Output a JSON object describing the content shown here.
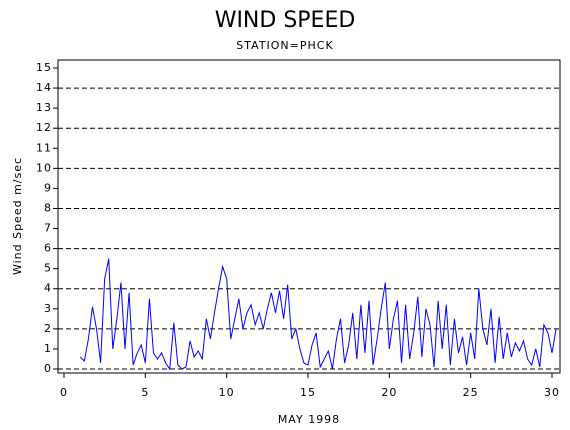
{
  "chart_data": {
    "type": "line",
    "title": "WIND SPEED",
    "subtitle": "STATION=PHCK",
    "xlabel": "MAY 1998",
    "ylabel": "Wind Speed m/sec",
    "xlim": [
      0,
      30
    ],
    "xticks": [
      0,
      5,
      10,
      15,
      20,
      25,
      30
    ],
    "ylim": [
      0,
      15
    ],
    "yticks": [
      0,
      1,
      2,
      3,
      4,
      5,
      6,
      7,
      8,
      9,
      10,
      11,
      12,
      13,
      14,
      15
    ],
    "grid": true,
    "grid_every": 2,
    "x": [
      1,
      1.25,
      1.5,
      1.75,
      2,
      2.25,
      2.5,
      2.75,
      3,
      3.25,
      3.5,
      3.75,
      4,
      4.25,
      4.5,
      4.75,
      5,
      5.25,
      5.5,
      5.75,
      6,
      6.25,
      6.5,
      6.75,
      7,
      7.25,
      7.5,
      7.75,
      8,
      8.25,
      8.5,
      8.75,
      9,
      9.25,
      9.5,
      9.75,
      10,
      10.25,
      10.5,
      10.75,
      11,
      11.25,
      11.5,
      11.75,
      12,
      12.25,
      12.5,
      12.75,
      13,
      13.25,
      13.5,
      13.75,
      14,
      14.25,
      14.5,
      14.75,
      15,
      15.25,
      15.5,
      15.75,
      16,
      16.25,
      16.5,
      16.75,
      17,
      17.25,
      17.5,
      17.75,
      18,
      18.25,
      18.5,
      18.75,
      19,
      19.25,
      19.5,
      19.75,
      20,
      20.25,
      20.5,
      20.75,
      21,
      21.25,
      21.5,
      21.75,
      22,
      22.25,
      22.5,
      22.75,
      23,
      23.25,
      23.5,
      23.75,
      24,
      24.25,
      24.5,
      24.75,
      25,
      25.25,
      25.5,
      25.75,
      26,
      26.25,
      26.5,
      26.75,
      27,
      27.25,
      27.5,
      27.75,
      28,
      28.25,
      28.5,
      28.75,
      29,
      29.25,
      29.5,
      29.75,
      30,
      30.25
    ],
    "series": [
      {
        "name": "Wind Speed",
        "color": "#0000ff",
        "values": [
          0.6,
          0.4,
          1.5,
          3.1,
          2.0,
          0.3,
          4.5,
          5.5,
          1.0,
          2.5,
          4.3,
          1.0,
          3.8,
          0.2,
          0.8,
          1.2,
          0.3,
          3.5,
          0.8,
          0.5,
          0.8,
          0.3,
          0.0,
          2.3,
          0.2,
          0.0,
          0.1,
          1.4,
          0.6,
          0.9,
          0.5,
          2.5,
          1.5,
          2.8,
          4.0,
          5.1,
          4.5,
          1.5,
          2.5,
          3.5,
          2.0,
          2.8,
          3.2,
          2.2,
          2.8,
          2.0,
          3.0,
          3.8,
          2.8,
          3.9,
          2.5,
          4.2,
          1.5,
          2.0,
          1.0,
          0.3,
          0.2,
          1.2,
          1.8,
          0.1,
          0.5,
          0.9,
          0.0,
          1.5,
          2.5,
          0.3,
          1.2,
          2.8,
          0.5,
          3.2,
          0.8,
          3.4,
          0.2,
          1.5,
          3.0,
          4.3,
          1.0,
          2.5,
          3.4,
          0.3,
          3.2,
          0.5,
          1.8,
          3.6,
          0.6,
          3.0,
          2.2,
          0.1,
          3.4,
          1.0,
          3.2,
          0.2,
          2.5,
          0.8,
          1.6,
          0.2,
          1.8,
          0.5,
          4.0,
          2.0,
          1.2,
          3.0,
          0.3,
          2.6,
          0.5,
          1.8,
          0.6,
          1.3,
          0.9,
          1.4,
          0.5,
          0.2,
          1.0,
          0.1,
          2.2,
          1.8,
          0.8,
          2.0
        ]
      }
    ]
  }
}
